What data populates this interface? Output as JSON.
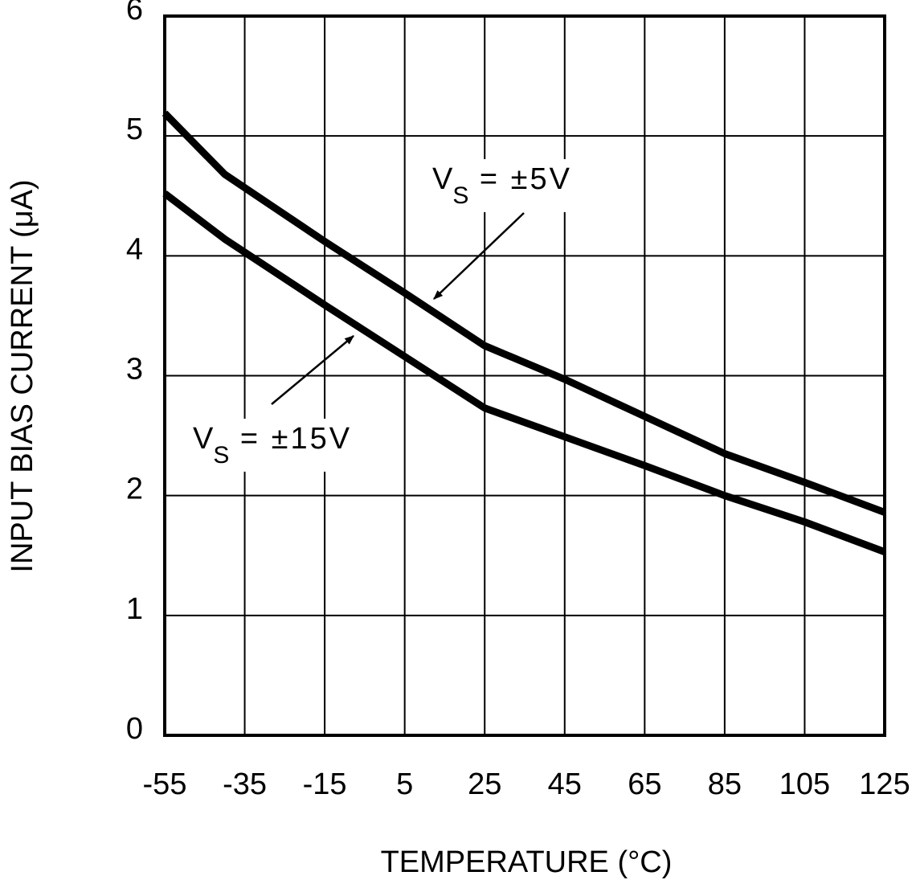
{
  "chart_data": {
    "type": "line",
    "xlabel": "TEMPERATURE (°C)",
    "ylabel": "INPUT BIAS CURRENT (μA)",
    "x": [
      -55,
      -40,
      -15,
      5,
      25,
      45,
      65,
      85,
      105,
      125
    ],
    "series": [
      {
        "color": "#000000",
        "values": [
          5.19,
          4.68,
          4.12,
          3.69,
          3.25,
          2.97,
          2.66,
          2.35,
          2.11,
          1.86
        ]
      },
      {
        "color": "#000000",
        "values": [
          4.52,
          4.14,
          3.59,
          3.16,
          2.73,
          2.49,
          2.25,
          2.0,
          1.78,
          1.53
        ]
      }
    ],
    "annotations": [
      {
        "text": "V",
        "sub": "S",
        "rest": " = ±5V"
      },
      {
        "text": "V",
        "sub": "S",
        "rest": " = ±15V"
      }
    ],
    "xlim": [
      -55,
      125
    ],
    "xticks": [
      -55,
      -35,
      -15,
      5,
      25,
      45,
      65,
      85,
      105,
      125
    ],
    "ylim": [
      0,
      6
    ],
    "yticks": [
      0,
      1,
      2,
      3,
      4,
      5,
      6
    ],
    "grid": true
  }
}
